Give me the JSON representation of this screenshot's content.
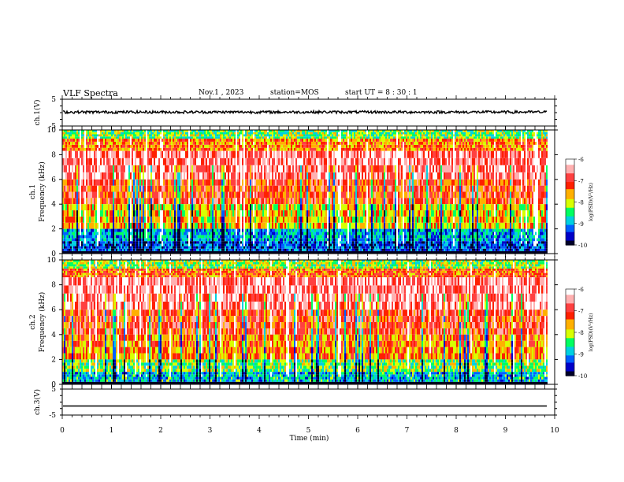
{
  "header": {
    "title": "VLF Spectra",
    "date": "Nov.1 , 2023",
    "station": "station=MOS",
    "start_ut": "start UT =  8 : 30 : 1"
  },
  "chart_data": [
    {
      "type": "line",
      "panel": "ch1-waveform",
      "ylabel": "ch.1(V)",
      "ylim": [
        -5,
        5
      ],
      "yticks": [
        "5",
        "-5"
      ],
      "xlim": [
        0,
        10
      ],
      "series": [
        {
          "values_description_baseline_v": 0.2,
          "amplitude_v": 0.5,
          "x_end": 9.85
        }
      ]
    },
    {
      "type": "heatmap",
      "panel": "ch1-spectrogram",
      "ylabel": "ch.1\nFrequency (kHz)",
      "ylim": [
        0,
        10
      ],
      "yticks": [
        "0",
        "2",
        "4",
        "6",
        "8",
        "10"
      ],
      "xlim": [
        0,
        10
      ],
      "x_end": 9.85,
      "colorbar": {
        "label": "log(PSD)(V²/Hz)",
        "range": [
          -10,
          -6
        ],
        "ticks": [
          "-6",
          "-7",
          "-8",
          "-9",
          "-10"
        ]
      },
      "bands": [
        {
          "f_min": 9.3,
          "f_max": 10,
          "level": -8.3
        },
        {
          "f_min": 8.3,
          "f_max": 9.3,
          "level": -7.4
        },
        {
          "f_min": 6.0,
          "f_max": 8.3,
          "level": -6.6
        },
        {
          "f_min": 4.0,
          "f_max": 6.0,
          "level": -7.1
        },
        {
          "f_min": 2.0,
          "f_max": 4.0,
          "level": -7.8
        },
        {
          "f_min": 1.0,
          "f_max": 2.0,
          "level": -8.9
        },
        {
          "f_min": 0.2,
          "f_max": 1.0,
          "level": -9.3
        },
        {
          "f_min": 0.0,
          "f_max": 0.2,
          "level": -10
        }
      ]
    },
    {
      "type": "heatmap",
      "panel": "ch2-spectrogram",
      "ylabel": "ch.2\nFrequency (kHz)",
      "ylim": [
        0,
        10
      ],
      "yticks": [
        "0",
        "2",
        "4",
        "6",
        "8",
        "10"
      ],
      "xlim": [
        0,
        10
      ],
      "x_end": 9.85,
      "colorbar": {
        "label": "log(PSD)(V²/Hz)",
        "range": [
          -10,
          -6
        ],
        "ticks": [
          "-6",
          "-7",
          "-8",
          "-9",
          "-10"
        ]
      },
      "bands": [
        {
          "f_min": 9.3,
          "f_max": 10,
          "level": -8.1
        },
        {
          "f_min": 8.6,
          "f_max": 9.3,
          "level": -7.3
        },
        {
          "f_min": 6.0,
          "f_max": 8.6,
          "level": -6.5
        },
        {
          "f_min": 4.0,
          "f_max": 6.0,
          "level": -7.0
        },
        {
          "f_min": 2.0,
          "f_max": 4.0,
          "level": -7.5
        },
        {
          "f_min": 1.0,
          "f_max": 2.0,
          "level": -8.2
        },
        {
          "f_min": 0.2,
          "f_max": 1.0,
          "level": -8.8
        },
        {
          "f_min": 0.0,
          "f_max": 0.2,
          "level": -10
        }
      ]
    },
    {
      "type": "line",
      "panel": "ch3-waveform",
      "ylabel": "ch.3(V)",
      "ylim": [
        -5,
        5
      ],
      "yticks": [
        "5",
        "-5"
      ],
      "xlim": [
        0,
        10
      ],
      "series": [
        {
          "values_description_baseline_v": -1.5,
          "amplitude_v": 0,
          "x_end": 9.85
        }
      ]
    }
  ],
  "x_axis": {
    "label": "Time (min)",
    "ticks": [
      "0",
      "1",
      "2",
      "3",
      "4",
      "5",
      "6",
      "7",
      "8",
      "9",
      "10"
    ]
  },
  "colormap": [
    "#00002a",
    "#0000c8",
    "#0060ff",
    "#00d0e0",
    "#00ff60",
    "#d8ff00",
    "#ffb000",
    "#ff2000",
    "#ff4040",
    "#ffb0b0",
    "#ffffff"
  ]
}
